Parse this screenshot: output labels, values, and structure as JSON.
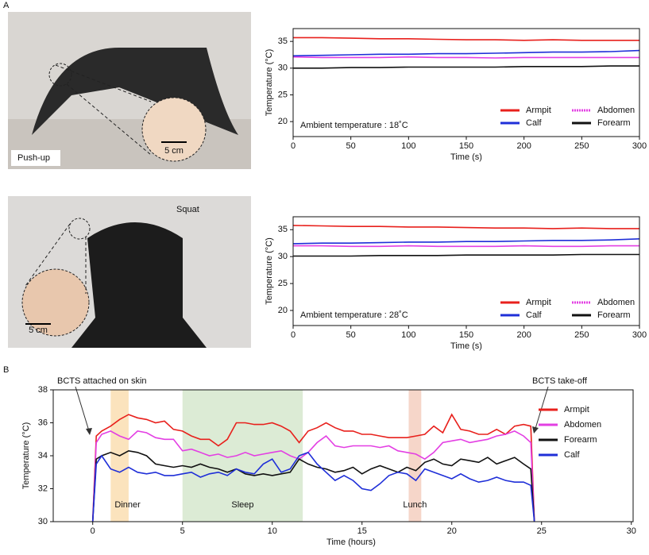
{
  "panel_labels": [
    "A",
    "B"
  ],
  "photos": [
    {
      "caption": "Push-up",
      "scale_bar": "5 cm"
    },
    {
      "caption": "Squat",
      "scale_bar": "5 cm"
    }
  ],
  "chart_data": [
    {
      "type": "line",
      "xlabel": "Time (s)",
      "ylabel": "Temperature (°C)",
      "annotation": "Ambient temperature : 18˚C",
      "x": [
        0,
        25,
        50,
        75,
        100,
        125,
        150,
        175,
        200,
        225,
        250,
        275,
        300
      ],
      "series": [
        {
          "name": "Armpit",
          "color": "#e8201c",
          "values": [
            35.7,
            35.7,
            35.6,
            35.5,
            35.5,
            35.4,
            35.3,
            35.3,
            35.2,
            35.3,
            35.2,
            35.2,
            35.2
          ]
        },
        {
          "name": "Abdomen",
          "color": "#e33fe3",
          "values": [
            32.1,
            32.0,
            32.0,
            32.0,
            32.1,
            32.0,
            32.0,
            31.9,
            32.0,
            32.0,
            32.0,
            32.0,
            32.0
          ]
        },
        {
          "name": "Calf",
          "color": "#1f2fd8",
          "values": [
            32.3,
            32.4,
            32.5,
            32.6,
            32.6,
            32.7,
            32.7,
            32.8,
            32.9,
            33.0,
            33.0,
            33.1,
            33.3
          ]
        },
        {
          "name": "Forearm",
          "color": "#111111",
          "values": [
            30.0,
            30.0,
            30.1,
            30.1,
            30.2,
            30.2,
            30.2,
            30.2,
            30.3,
            30.3,
            30.3,
            30.4,
            30.4
          ]
        }
      ],
      "xlim": [
        0,
        300
      ],
      "xticks": [
        0,
        50,
        100,
        150,
        200,
        250,
        300
      ],
      "ylim": [
        17.2,
        37.4
      ],
      "yticks": [
        20,
        25,
        30,
        35
      ],
      "legend": "lower right"
    },
    {
      "type": "line",
      "xlabel": "Time (s)",
      "ylabel": "Temperature (°C)",
      "annotation": "Ambient temperature : 28˚C",
      "x": [
        0,
        25,
        50,
        75,
        100,
        125,
        150,
        175,
        200,
        225,
        250,
        275,
        300
      ],
      "series": [
        {
          "name": "Armpit",
          "color": "#e8201c",
          "values": [
            35.8,
            35.7,
            35.6,
            35.6,
            35.5,
            35.5,
            35.4,
            35.3,
            35.3,
            35.2,
            35.3,
            35.2,
            35.2
          ]
        },
        {
          "name": "Abdomen",
          "color": "#e33fe3",
          "values": [
            32.0,
            32.0,
            31.9,
            31.9,
            32.0,
            31.9,
            31.9,
            31.9,
            32.0,
            31.9,
            31.9,
            32.0,
            32.0
          ]
        },
        {
          "name": "Calf",
          "color": "#1f2fd8",
          "values": [
            32.4,
            32.5,
            32.5,
            32.6,
            32.7,
            32.7,
            32.8,
            32.8,
            32.9,
            33.0,
            33.0,
            33.1,
            33.3
          ]
        },
        {
          "name": "Forearm",
          "color": "#111111",
          "values": [
            30.1,
            30.1,
            30.1,
            30.2,
            30.2,
            30.2,
            30.3,
            30.3,
            30.3,
            30.3,
            30.4,
            30.4,
            30.4
          ]
        }
      ],
      "xlim": [
        0,
        300
      ],
      "xticks": [
        0,
        50,
        100,
        150,
        200,
        250,
        300
      ],
      "ylim": [
        17.2,
        37.4
      ],
      "yticks": [
        20,
        25,
        30,
        35
      ],
      "legend": "lower right"
    },
    {
      "type": "line",
      "xlabel": "Time (hours)",
      "ylabel": "Temperature (°C)",
      "annotations": [
        "BCTS attached on skin",
        "BCTS take-off"
      ],
      "spans": [
        {
          "label": "Dinner",
          "range": [
            1,
            2
          ],
          "color": "#fbe3bd"
        },
        {
          "label": "Sleep",
          "range": [
            5,
            11.7
          ],
          "color": "#dcebd5"
        },
        {
          "label": "Lunch",
          "range": [
            17.6,
            18.3
          ],
          "color": "#f6d6c9"
        }
      ],
      "x": [
        0,
        0.2,
        0.5,
        1,
        1.5,
        2,
        2.5,
        3,
        3.5,
        4,
        4.5,
        5,
        5.5,
        6,
        6.5,
        7,
        7.5,
        8,
        8.5,
        9,
        9.5,
        10,
        10.5,
        11,
        11.5,
        12,
        12.5,
        13,
        13.5,
        14,
        14.5,
        15,
        15.5,
        16,
        16.5,
        17,
        17.5,
        18,
        18.5,
        19,
        19.5,
        20,
        20.5,
        21,
        21.5,
        22,
        22.5,
        23,
        23.5,
        24,
        24.4,
        24.6
      ],
      "series": [
        {
          "name": "Armpit",
          "color": "#e8201c",
          "values": [
            30,
            35.2,
            35.5,
            35.8,
            36.2,
            36.5,
            36.3,
            36.2,
            36.0,
            36.1,
            35.6,
            35.5,
            35.2,
            35.0,
            35.0,
            34.6,
            35.0,
            36.0,
            36.0,
            35.9,
            35.9,
            36.0,
            35.8,
            35.5,
            34.8,
            35.5,
            35.7,
            36.0,
            35.7,
            35.5,
            35.5,
            35.3,
            35.3,
            35.2,
            35.1,
            35.1,
            35.1,
            35.2,
            35.3,
            35.8,
            35.4,
            36.5,
            35.6,
            35.5,
            35.3,
            35.3,
            35.6,
            35.3,
            35.8,
            35.9,
            35.8,
            30
          ]
        },
        {
          "name": "Abdomen",
          "color": "#e33fe3",
          "values": [
            30,
            34.8,
            35.3,
            35.5,
            35.2,
            35.0,
            35.5,
            35.4,
            35.1,
            35.0,
            35.0,
            34.3,
            34.4,
            34.2,
            34.0,
            34.1,
            33.9,
            34.0,
            34.2,
            34.0,
            34.1,
            34.2,
            34.3,
            34.0,
            33.8,
            34.2,
            34.8,
            35.2,
            34.6,
            34.5,
            34.6,
            34.6,
            34.6,
            34.5,
            34.6,
            34.3,
            34.2,
            34.1,
            33.8,
            34.2,
            34.8,
            34.9,
            35.0,
            34.8,
            34.9,
            35.0,
            35.2,
            35.3,
            35.5,
            35.2,
            34.8,
            30
          ]
        },
        {
          "name": "Forearm",
          "color": "#111111",
          "values": [
            30,
            33.8,
            34.0,
            34.2,
            34.0,
            34.3,
            34.2,
            34.0,
            33.5,
            33.4,
            33.3,
            33.4,
            33.3,
            33.5,
            33.3,
            33.2,
            33.0,
            33.2,
            32.9,
            32.8,
            32.9,
            32.8,
            32.9,
            33.0,
            33.8,
            33.5,
            33.3,
            33.2,
            33.0,
            33.1,
            33.3,
            32.9,
            33.2,
            33.4,
            33.2,
            33.0,
            33.3,
            33.1,
            33.6,
            33.8,
            33.5,
            33.4,
            33.8,
            33.7,
            33.6,
            33.9,
            33.5,
            33.7,
            33.9,
            33.5,
            33.2,
            30
          ]
        },
        {
          "name": "Calf",
          "color": "#1f2fd8",
          "values": [
            30,
            33.5,
            34.0,
            33.2,
            33.0,
            33.3,
            33.0,
            32.9,
            33.0,
            32.8,
            32.8,
            32.9,
            33.0,
            32.7,
            32.9,
            33.0,
            32.8,
            33.2,
            33.0,
            32.9,
            33.5,
            33.8,
            33.0,
            33.2,
            34.0,
            34.2,
            33.5,
            33.0,
            32.5,
            32.8,
            32.5,
            32.0,
            31.9,
            32.3,
            32.8,
            33.0,
            32.9,
            32.5,
            33.2,
            33.0,
            32.8,
            32.6,
            32.9,
            32.6,
            32.4,
            32.5,
            32.7,
            32.5,
            32.4,
            32.4,
            32.2,
            30
          ]
        }
      ],
      "xlim": [
        -2.2,
        30.1
      ],
      "xticks": [
        0,
        5,
        10,
        15,
        20,
        25,
        30
      ],
      "ylim": [
        30,
        38
      ],
      "yticks": [
        30,
        32,
        34,
        36,
        38
      ],
      "legend": "outside right"
    }
  ]
}
